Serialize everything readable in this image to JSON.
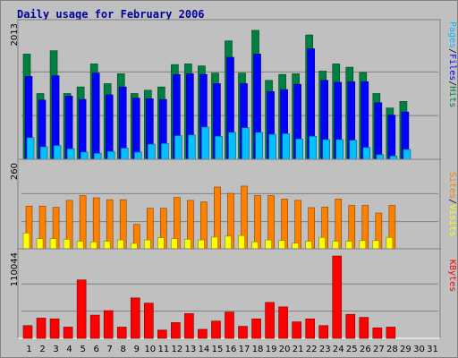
{
  "chart_data": {
    "type": "bar",
    "title": "Daily usage for February 2006",
    "categories": [
      "1",
      "2",
      "3",
      "4",
      "5",
      "6",
      "7",
      "8",
      "9",
      "10",
      "11",
      "12",
      "13",
      "14",
      "15",
      "16",
      "17",
      "18",
      "19",
      "20",
      "21",
      "22",
      "23",
      "24",
      "25",
      "26",
      "27",
      "28",
      "29",
      "30",
      "31"
    ],
    "weekend_days": [
      "4",
      "5",
      "11",
      "12",
      "18",
      "19",
      "25",
      "26"
    ],
    "panels": [
      {
        "max_label": "2013",
        "ylim": [
          0,
          2013
        ],
        "series": [
          {
            "name": "Hits",
            "color": "#008040",
            "values": [
              1600,
              1000,
              1650,
              1000,
              1100,
              1450,
              1150,
              1300,
              1000,
              1050,
              1100,
              1440,
              1450,
              1420,
              1310,
              1800,
              1310,
              1960,
              1200,
              1290,
              1300,
              1890,
              1340,
              1450,
              1400,
              1320,
              1000,
              780,
              880,
              0,
              0
            ]
          },
          {
            "name": "Files",
            "color": "#0000ff",
            "values": [
              1260,
              900,
              1270,
              960,
              910,
              1310,
              980,
              1100,
              930,
              920,
              910,
              1290,
              1300,
              1290,
              1150,
              1550,
              1150,
              1600,
              1030,
              1060,
              1140,
              1680,
              1200,
              1170,
              1180,
              1180,
              860,
              670,
              720,
              0,
              0
            ]
          },
          {
            "name": "Pages",
            "color": "#00c0ff",
            "values": [
              330,
              190,
              210,
              160,
              110,
              90,
              120,
              170,
              110,
              230,
              240,
              360,
              370,
              490,
              350,
              410,
              480,
              410,
              380,
              390,
              310,
              350,
              300,
              300,
              290,
              180,
              70,
              50,
              150,
              0,
              0
            ]
          }
        ],
        "legend": [
          "Pages",
          "Files",
          "Hits"
        ]
      },
      {
        "max_label": "260",
        "ylim": [
          0,
          260
        ],
        "series": [
          {
            "name": "Sites",
            "color": "#ff8000",
            "values": [
              135,
              135,
              131,
              153,
              168,
              161,
              155,
              155,
              77,
              128,
              128,
              162,
              153,
              148,
              195,
              175,
              198,
              168,
              168,
              157,
              153,
              130,
              132,
              157,
              137,
              137,
              113,
              137,
              0,
              0,
              0
            ]
          },
          {
            "name": "Visits",
            "color": "#ffff00",
            "values": [
              50,
              32,
              32,
              30,
              24,
              22,
              24,
              28,
              17,
              28,
              35,
              32,
              30,
              28,
              37,
              40,
              42,
              22,
              28,
              26,
              18,
              24,
              36,
              24,
              24,
              26,
              26,
              36,
              0,
              0,
              0
            ]
          }
        ],
        "legend": [
          "Sites",
          "Visits"
        ]
      },
      {
        "max_label": "110044",
        "ylim": [
          0,
          110044
        ],
        "series": [
          {
            "name": "KBytes",
            "color": "#ff0000",
            "values": [
              17000,
              27000,
              26000,
              15000,
              78000,
              31000,
              37000,
              15000,
              54000,
              47000,
              11000,
              21000,
              33000,
              12000,
              23000,
              35000,
              16000,
              26000,
              48000,
              42000,
              22000,
              26000,
              17000,
              110000,
              32000,
              28000,
              14000,
              15000,
              0,
              0,
              0
            ]
          }
        ],
        "legend": [
          "KBytes"
        ]
      }
    ]
  }
}
